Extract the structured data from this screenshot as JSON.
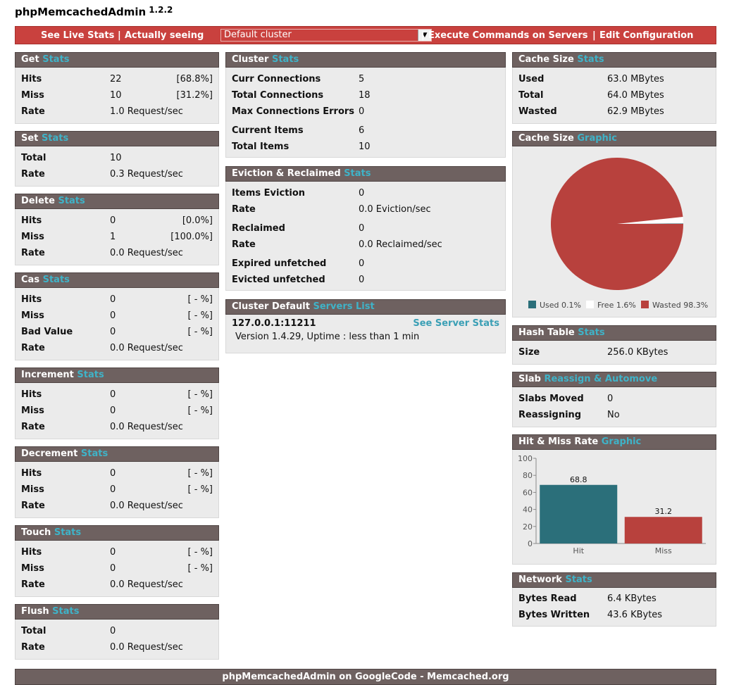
{
  "app": {
    "title": "phpMemcachedAdmin",
    "version": "1.2.2"
  },
  "topbar": {
    "live_stats": "See Live Stats",
    "sep": "|",
    "actually_seeing": "Actually seeing",
    "cluster_select": "Default cluster",
    "execute": "Execute Commands on Servers",
    "edit": "Edit Configuration"
  },
  "colors": {
    "header_bg": "#6e6160",
    "accent_link": "#3fb3c8",
    "topbar_bg": "#c9413e",
    "used": "#2b6f7a",
    "free": "#ffffff",
    "wasted": "#b8413d"
  },
  "get": {
    "title": "Get",
    "link": "Stats",
    "rows": [
      {
        "label": "Hits",
        "value": "22",
        "pct": "[68.8%]"
      },
      {
        "label": "Miss",
        "value": "10",
        "pct": "[31.2%]"
      },
      {
        "label": "Rate",
        "value": "1.0 Request/sec",
        "pct": ""
      }
    ]
  },
  "set": {
    "title": "Set",
    "link": "Stats",
    "rows": [
      {
        "label": "Total",
        "value": "10"
      },
      {
        "label": "Rate",
        "value": "0.3 Request/sec"
      }
    ]
  },
  "delete": {
    "title": "Delete",
    "link": "Stats",
    "rows": [
      {
        "label": "Hits",
        "value": "0",
        "pct": "[0.0%]"
      },
      {
        "label": "Miss",
        "value": "1",
        "pct": "[100.0%]"
      },
      {
        "label": "Rate",
        "value": "0.0 Request/sec",
        "pct": ""
      }
    ]
  },
  "cas": {
    "title": "Cas",
    "link": "Stats",
    "rows": [
      {
        "label": "Hits",
        "value": "0",
        "pct": "[ - %]"
      },
      {
        "label": "Miss",
        "value": "0",
        "pct": "[ - %]"
      },
      {
        "label": "Bad Value",
        "value": "0",
        "pct": "[ - %]"
      },
      {
        "label": "Rate",
        "value": "0.0 Request/sec",
        "pct": ""
      }
    ]
  },
  "increment": {
    "title": "Increment",
    "link": "Stats",
    "rows": [
      {
        "label": "Hits",
        "value": "0",
        "pct": "[ - %]"
      },
      {
        "label": "Miss",
        "value": "0",
        "pct": "[ - %]"
      },
      {
        "label": "Rate",
        "value": "0.0 Request/sec",
        "pct": ""
      }
    ]
  },
  "decrement": {
    "title": "Decrement",
    "link": "Stats",
    "rows": [
      {
        "label": "Hits",
        "value": "0",
        "pct": "[ - %]"
      },
      {
        "label": "Miss",
        "value": "0",
        "pct": "[ - %]"
      },
      {
        "label": "Rate",
        "value": "0.0 Request/sec",
        "pct": ""
      }
    ]
  },
  "touch": {
    "title": "Touch",
    "link": "Stats",
    "rows": [
      {
        "label": "Hits",
        "value": "0",
        "pct": "[ - %]"
      },
      {
        "label": "Miss",
        "value": "0",
        "pct": "[ - %]"
      },
      {
        "label": "Rate",
        "value": "0.0 Request/sec",
        "pct": ""
      }
    ]
  },
  "flush": {
    "title": "Flush",
    "link": "Stats",
    "rows": [
      {
        "label": "Total",
        "value": "0"
      },
      {
        "label": "Rate",
        "value": "0.0 Request/sec"
      }
    ]
  },
  "cluster": {
    "title": "Cluster",
    "link": "Stats",
    "rows": [
      {
        "label": "Curr Connections",
        "value": "5"
      },
      {
        "label": "Total Connections",
        "value": "18"
      },
      {
        "label": "Max Connections Errors",
        "value": "0"
      },
      {
        "label": "Current Items",
        "value": "6"
      },
      {
        "label": "Total Items",
        "value": "10"
      }
    ]
  },
  "eviction": {
    "title": "Eviction & Reclaimed",
    "link": "Stats",
    "rows": [
      {
        "label": "Items Eviction",
        "value": "0"
      },
      {
        "label": "Rate",
        "value": "0.0 Eviction/sec"
      },
      {
        "label": "Reclaimed",
        "value": "0"
      },
      {
        "label": "Rate",
        "value": "0.0 Reclaimed/sec"
      },
      {
        "label": "Expired unfetched",
        "value": "0"
      },
      {
        "label": "Evicted unfetched",
        "value": "0"
      }
    ]
  },
  "servers": {
    "title": "Cluster Default",
    "link": "Servers List",
    "host": "127.0.0.1:11211",
    "see_stats": "See Server Stats",
    "meta": "Version 1.4.29, Uptime : less than 1 min"
  },
  "cache_size": {
    "title": "Cache Size",
    "link": "Stats",
    "rows": [
      {
        "label": "Used",
        "value": "63.0 MBytes"
      },
      {
        "label": "Total",
        "value": "64.0 MBytes"
      },
      {
        "label": "Wasted",
        "value": "62.9 MBytes"
      }
    ]
  },
  "cache_graphic": {
    "title": "Cache Size",
    "link": "Graphic",
    "legend": [
      {
        "label": "Used 0.1%",
        "color": "#2b6f7a"
      },
      {
        "label": "Free 1.6%",
        "color": "#ffffff"
      },
      {
        "label": "Wasted 98.3%",
        "color": "#b8413d"
      }
    ]
  },
  "hash_table": {
    "title": "Hash Table",
    "link": "Stats",
    "rows": [
      {
        "label": "Size",
        "value": "256.0 KBytes"
      }
    ]
  },
  "slab": {
    "title": "Slab",
    "link": "Reassign & Automove",
    "rows": [
      {
        "label": "Slabs Moved",
        "value": "0"
      },
      {
        "label": "Reassigning",
        "value": "No"
      }
    ]
  },
  "hitmiss": {
    "title": "Hit & Miss Rate",
    "link": "Graphic"
  },
  "network": {
    "title": "Network",
    "link": "Stats",
    "rows": [
      {
        "label": "Bytes Read",
        "value": "6.4 KBytes"
      },
      {
        "label": "Bytes Written",
        "value": "43.6 KBytes"
      }
    ]
  },
  "footer": {
    "text": "phpMemcachedAdmin on GoogleCode - Memcached.org"
  },
  "chart_data": [
    {
      "type": "pie",
      "categories": [
        "Used",
        "Free",
        "Wasted"
      ],
      "values": [
        0.1,
        1.6,
        98.3
      ]
    },
    {
      "type": "bar",
      "categories": [
        "Hit",
        "Miss"
      ],
      "values": [
        68.8,
        31.2
      ],
      "ylim": [
        0,
        100
      ],
      "yticks": [
        0,
        20,
        40,
        60,
        80,
        100
      ],
      "colors": [
        "#2b6f7a",
        "#b8413d"
      ]
    }
  ]
}
